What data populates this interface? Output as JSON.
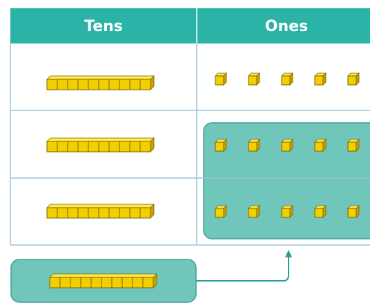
{
  "table": {
    "headers": [
      "Tens",
      "Ones"
    ]
  }
}
